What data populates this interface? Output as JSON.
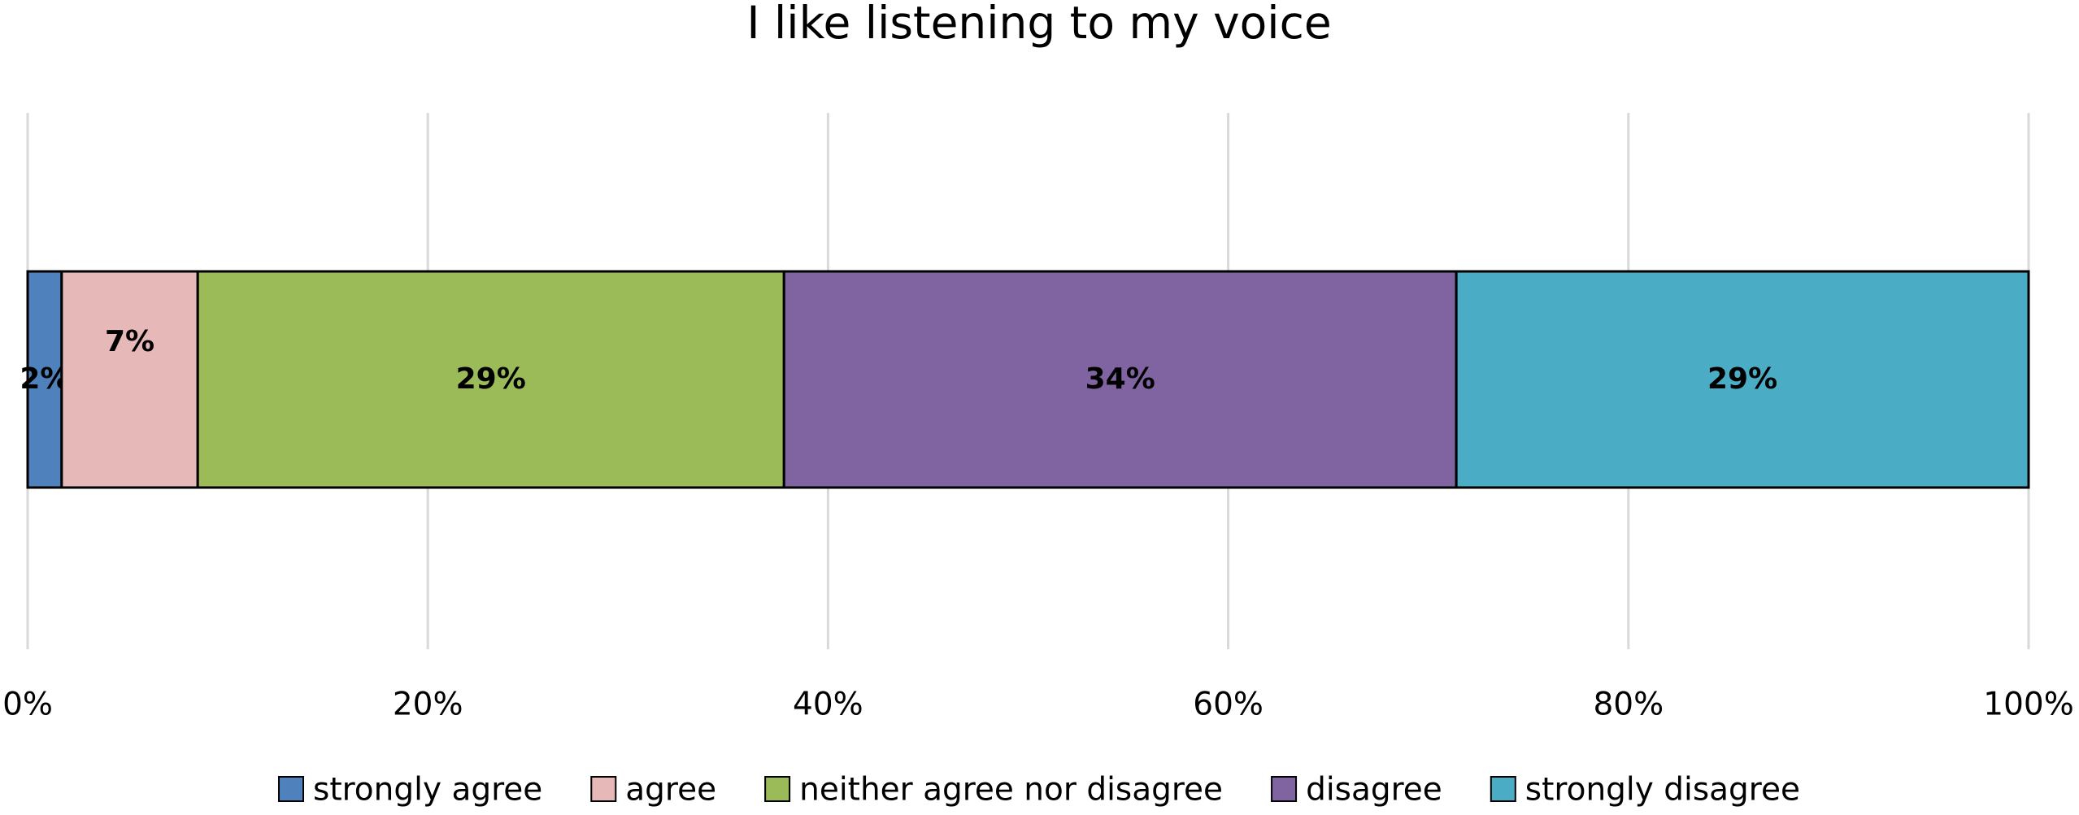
{
  "chart_data": {
    "type": "stacked-bar-horizontal",
    "title": "I like listening to my voice",
    "series": [
      {
        "name": "strongly agree",
        "color": "#4f81bd",
        "values": [
          1.7
        ],
        "value_labels": [
          "2%"
        ]
      },
      {
        "name": "agree",
        "color": "#e6b9b8",
        "values": [
          6.8
        ],
        "value_labels": [
          "7%"
        ]
      },
      {
        "name": "neither agree nor disagree",
        "color": "#9bbb59",
        "values": [
          29.3
        ],
        "value_labels": [
          "29%"
        ]
      },
      {
        "name": "disagree",
        "color": "#8064a2",
        "values": [
          33.6
        ],
        "value_labels": [
          "34%"
        ]
      },
      {
        "name": "strongly disagree",
        "color": "#4bacc6",
        "values": [
          28.6
        ],
        "value_labels": [
          "29%"
        ]
      }
    ],
    "xlim": [
      0,
      100
    ],
    "xticks": [
      {
        "value": 0,
        "label": "0%"
      },
      {
        "value": 20,
        "label": "20%"
      },
      {
        "value": 40,
        "label": "40%"
      },
      {
        "value": 60,
        "label": "60%"
      },
      {
        "value": 80,
        "label": "80%"
      },
      {
        "value": 100,
        "label": "100%"
      }
    ],
    "grid": true,
    "legend": "bottom"
  }
}
